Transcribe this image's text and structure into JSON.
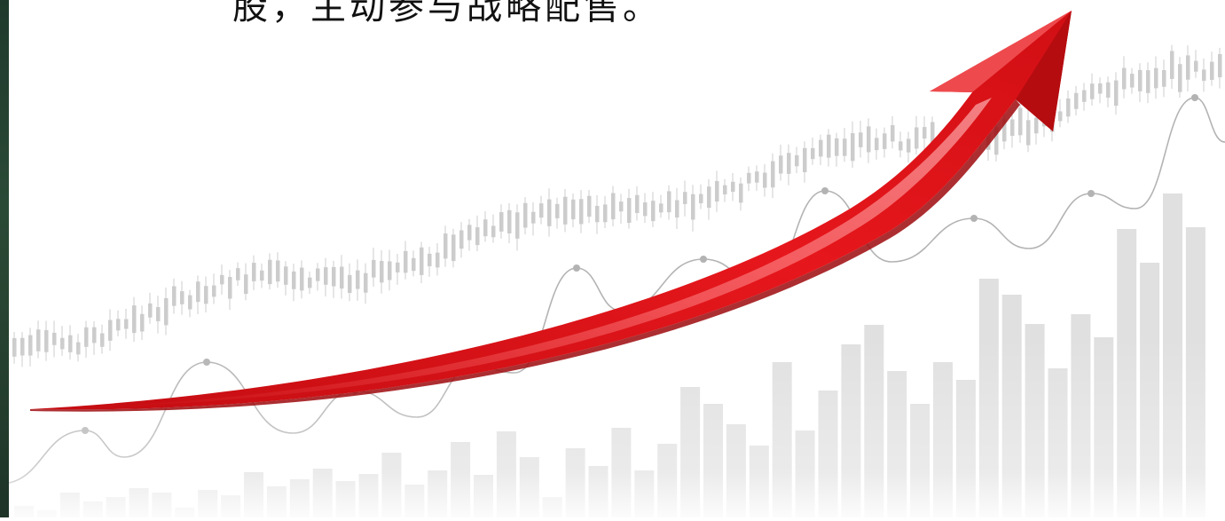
{
  "caption_text": "股，主动参与战略配售。",
  "colors": {
    "arrow_main": "#e0161b",
    "arrow_dark": "#a50a0e",
    "arrow_highlight": "#f25a5e",
    "bars": "#d6d6d6",
    "candles": "#cccccc",
    "line": "#b3b3b3",
    "edge_strip": "#264331"
  },
  "icons": [
    "trend-up-arrow",
    "candlestick-chart",
    "bar-chart",
    "line-chart"
  ]
}
